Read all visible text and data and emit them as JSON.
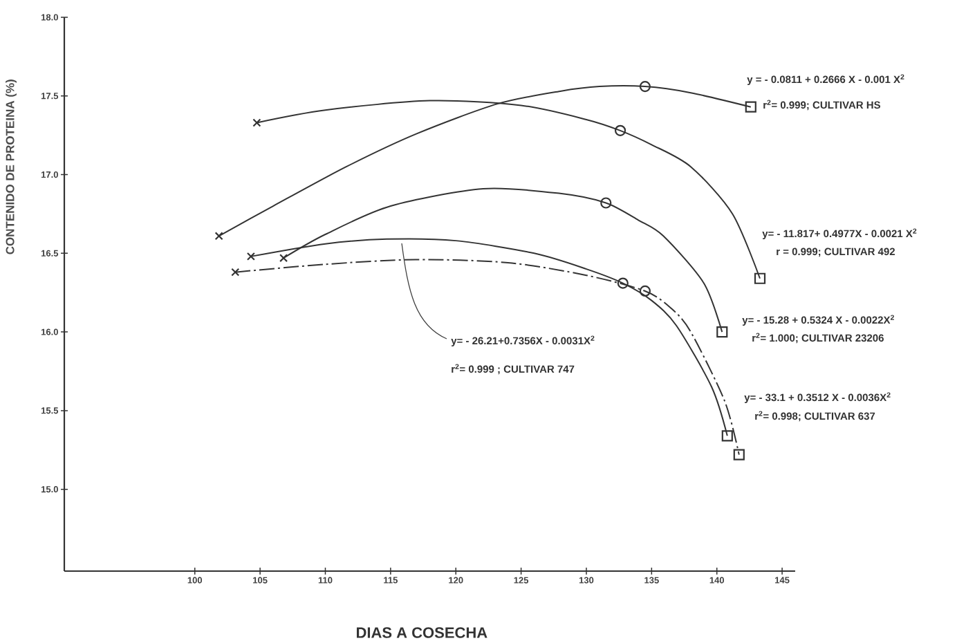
{
  "chart_data": {
    "type": "line",
    "xlabel": "DIAS A COSECHA",
    "ylabel": "CONTENIDO DE PROTEINA (%)",
    "xlim": [
      90,
      146
    ],
    "ylim": [
      14.48,
      18.0
    ],
    "xticks": [
      100,
      105,
      110,
      115,
      120,
      125,
      130,
      135,
      140,
      145
    ],
    "yticks": [
      {
        "value": 15.0,
        "label": "15.0"
      },
      {
        "value": 15.5,
        "label": "15.5"
      },
      {
        "value": 16.0,
        "label": "16.0"
      },
      {
        "value": 16.5,
        "label": "16.5"
      },
      {
        "value": 17.0,
        "label": "17.0"
      },
      {
        "value": 17.5,
        "label": "17.5"
      },
      {
        "value": 18.0,
        "label": "18.0"
      }
    ],
    "marker": "none",
    "line_style": "solid",
    "series": [
      {
        "color": "#333333",
        "x": [
          101.85,
          106,
          111.6,
          117,
          123.2,
          128,
          131,
          134.5,
          138,
          142.6
        ],
        "values": [
          16.61,
          16.8,
          17.05,
          17.26,
          17.45,
          17.53,
          17.56,
          17.56,
          17.52,
          17.43
        ]
      },
      {
        "color": "#333333",
        "x": [
          104.75,
          110,
          118,
          125,
          130,
          132.6,
          135,
          138,
          141.2,
          143.3
        ],
        "values": [
          17.33,
          17.41,
          17.47,
          17.44,
          17.35,
          17.28,
          17.19,
          17.05,
          16.75,
          16.34
        ]
      },
      {
        "color": "#333333",
        "x": [
          106.8,
          110,
          115,
          122.1,
          128,
          131.5,
          134,
          135.9,
          139,
          140.4
        ],
        "values": [
          16.47,
          16.62,
          16.8,
          16.91,
          16.88,
          16.82,
          16.71,
          16.61,
          16.31,
          16.0
        ]
      },
      {
        "color": "#333333",
        "x": [
          104.3,
          110,
          114.7,
          120,
          126,
          130,
          132.8,
          135,
          136.9,
          139.6,
          140.8
        ],
        "values": [
          16.48,
          16.56,
          16.59,
          16.58,
          16.5,
          16.4,
          16.31,
          16.2,
          16.04,
          15.65,
          15.34
        ]
      },
      {
        "color": "#333333",
        "line_style": "dashed",
        "x": [
          103.1,
          110,
          116.9,
          124,
          130,
          134.5,
          136.5,
          138,
          140.6,
          141.7
        ],
        "values": [
          16.38,
          16.43,
          16.46,
          16.44,
          16.36,
          16.26,
          16.15,
          16.0,
          15.56,
          15.22
        ]
      },
      {
        "type": "scatter",
        "marker": "cross",
        "color": "#333333",
        "x": [
          101.85,
          104.75,
          106.8,
          104.3,
          103.1
        ],
        "values": [
          16.61,
          17.33,
          16.47,
          16.48,
          16.38
        ]
      },
      {
        "type": "scatter",
        "marker": "circle",
        "color": "#333333",
        "x": [
          134.5,
          132.6,
          131.5,
          132.8,
          134.5
        ],
        "values": [
          17.56,
          17.28,
          16.82,
          16.31,
          16.26
        ]
      },
      {
        "type": "scatter",
        "marker": "square",
        "color": "#333333",
        "x": [
          142.6,
          143.3,
          140.4,
          140.8,
          141.7
        ],
        "values": [
          17.43,
          16.34,
          16.0,
          15.34,
          15.22
        ]
      }
    ],
    "annotations": [
      "y = - 0.0811 + 0.2666 X - 0.001 X$^{2}$",
      "r$^{2}$= 0.999; CULTIVAR HS",
      "y= - 11.817+ 0.4977X - 0.0021 X$^{2}$",
      "r = 0.999; CULTIVAR 492",
      "y= - 15.28 + 0.5324 X - 0.0022X$^{2}$",
      "r$^{2}$= 1.000; CULTIVAR 23206",
      "y= - 33.1 + 0.3512 X - 0.0036X$^{2}$",
      "r$^{2}$= 0.998; CULTIVAR 637",
      "y= - 26.21+0.7356X - 0.0031X$^{2}$",
      "r$^{2}$= 0.999 ; CULTIVAR 747"
    ]
  }
}
